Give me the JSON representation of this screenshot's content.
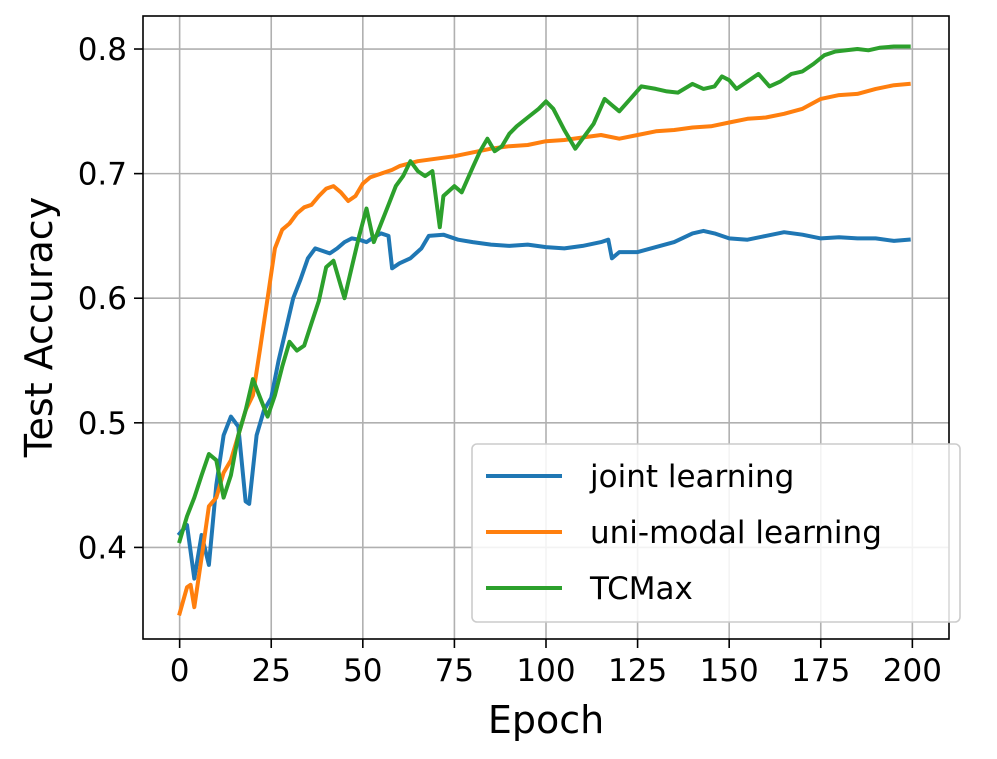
{
  "chart_data": {
    "type": "line",
    "title": "",
    "xlabel": "Epoch",
    "ylabel": "Test Accuracy",
    "xlim": [
      -10,
      210
    ],
    "ylim": [
      0.3265,
      0.8265
    ],
    "xticks": [
      0,
      25,
      50,
      75,
      100,
      125,
      150,
      175,
      200
    ],
    "xtick_labels": [
      "0",
      "25",
      "50",
      "75",
      "100",
      "125",
      "150",
      "175",
      "200"
    ],
    "yticks": [
      0.4,
      0.5,
      0.6,
      0.7,
      0.8
    ],
    "ytick_labels": [
      "0.4",
      "0.5",
      "0.6",
      "0.7",
      "0.8"
    ],
    "grid": true,
    "legend_position": "lower-right",
    "series": [
      {
        "name": "joint learning",
        "color": "#1f77b4",
        "points": [
          [
            0,
            0.411
          ],
          [
            2,
            0.418
          ],
          [
            4,
            0.375
          ],
          [
            6,
            0.41
          ],
          [
            8,
            0.386
          ],
          [
            10,
            0.45
          ],
          [
            12,
            0.49
          ],
          [
            14,
            0.505
          ],
          [
            16,
            0.497
          ],
          [
            18,
            0.437
          ],
          [
            19,
            0.435
          ],
          [
            21,
            0.49
          ],
          [
            23,
            0.51
          ],
          [
            25,
            0.52
          ],
          [
            27,
            0.55
          ],
          [
            29,
            0.575
          ],
          [
            31,
            0.6
          ],
          [
            33,
            0.615
          ],
          [
            35,
            0.632
          ],
          [
            37,
            0.64
          ],
          [
            39,
            0.638
          ],
          [
            41,
            0.636
          ],
          [
            43,
            0.64
          ],
          [
            45,
            0.645
          ],
          [
            47,
            0.648
          ],
          [
            49,
            0.647
          ],
          [
            51,
            0.645
          ],
          [
            53,
            0.649
          ],
          [
            55,
            0.652
          ],
          [
            57,
            0.65
          ],
          [
            58,
            0.624
          ],
          [
            60,
            0.628
          ],
          [
            63,
            0.632
          ],
          [
            66,
            0.64
          ],
          [
            68,
            0.65
          ],
          [
            72,
            0.651
          ],
          [
            76,
            0.647
          ],
          [
            80,
            0.645
          ],
          [
            85,
            0.643
          ],
          [
            90,
            0.642
          ],
          [
            95,
            0.643
          ],
          [
            100,
            0.641
          ],
          [
            105,
            0.64
          ],
          [
            110,
            0.642
          ],
          [
            115,
            0.645
          ],
          [
            117,
            0.647
          ],
          [
            118,
            0.632
          ],
          [
            120,
            0.637
          ],
          [
            125,
            0.637
          ],
          [
            130,
            0.641
          ],
          [
            135,
            0.645
          ],
          [
            140,
            0.652
          ],
          [
            143,
            0.654
          ],
          [
            146,
            0.652
          ],
          [
            150,
            0.648
          ],
          [
            155,
            0.647
          ],
          [
            160,
            0.65
          ],
          [
            165,
            0.653
          ],
          [
            170,
            0.651
          ],
          [
            175,
            0.648
          ],
          [
            180,
            0.649
          ],
          [
            185,
            0.648
          ],
          [
            190,
            0.648
          ],
          [
            195,
            0.646
          ],
          [
            199,
            0.647
          ]
        ]
      },
      {
        "name": "uni-modal learning",
        "color": "#ff7f0e",
        "points": [
          [
            0,
            0.347
          ],
          [
            2,
            0.368
          ],
          [
            3,
            0.37
          ],
          [
            4,
            0.352
          ],
          [
            6,
            0.392
          ],
          [
            8,
            0.433
          ],
          [
            10,
            0.44
          ],
          [
            12,
            0.46
          ],
          [
            14,
            0.47
          ],
          [
            16,
            0.49
          ],
          [
            18,
            0.51
          ],
          [
            20,
            0.522
          ],
          [
            22,
            0.56
          ],
          [
            24,
            0.6
          ],
          [
            26,
            0.64
          ],
          [
            28,
            0.655
          ],
          [
            30,
            0.66
          ],
          [
            32,
            0.668
          ],
          [
            34,
            0.673
          ],
          [
            36,
            0.675
          ],
          [
            38,
            0.682
          ],
          [
            40,
            0.688
          ],
          [
            42,
            0.69
          ],
          [
            44,
            0.685
          ],
          [
            46,
            0.678
          ],
          [
            48,
            0.682
          ],
          [
            50,
            0.692
          ],
          [
            52,
            0.697
          ],
          [
            55,
            0.7
          ],
          [
            58,
            0.703
          ],
          [
            60,
            0.706
          ],
          [
            65,
            0.71
          ],
          [
            70,
            0.712
          ],
          [
            75,
            0.714
          ],
          [
            80,
            0.717
          ],
          [
            85,
            0.72
          ],
          [
            90,
            0.722
          ],
          [
            95,
            0.723
          ],
          [
            100,
            0.726
          ],
          [
            105,
            0.727
          ],
          [
            110,
            0.729
          ],
          [
            115,
            0.731
          ],
          [
            120,
            0.728
          ],
          [
            125,
            0.731
          ],
          [
            130,
            0.734
          ],
          [
            135,
            0.735
          ],
          [
            140,
            0.737
          ],
          [
            145,
            0.738
          ],
          [
            150,
            0.741
          ],
          [
            155,
            0.744
          ],
          [
            160,
            0.745
          ],
          [
            165,
            0.748
          ],
          [
            170,
            0.752
          ],
          [
            175,
            0.76
          ],
          [
            180,
            0.763
          ],
          [
            185,
            0.764
          ],
          [
            190,
            0.768
          ],
          [
            195,
            0.771
          ],
          [
            199,
            0.772
          ]
        ]
      },
      {
        "name": "TCMax",
        "color": "#2ca02c",
        "points": [
          [
            0,
            0.405
          ],
          [
            2,
            0.425
          ],
          [
            4,
            0.44
          ],
          [
            6,
            0.458
          ],
          [
            8,
            0.475
          ],
          [
            10,
            0.47
          ],
          [
            12,
            0.44
          ],
          [
            14,
            0.458
          ],
          [
            16,
            0.49
          ],
          [
            18,
            0.51
          ],
          [
            20,
            0.535
          ],
          [
            22,
            0.52
          ],
          [
            24,
            0.505
          ],
          [
            26,
            0.522
          ],
          [
            28,
            0.545
          ],
          [
            30,
            0.565
          ],
          [
            32,
            0.558
          ],
          [
            34,
            0.562
          ],
          [
            36,
            0.58
          ],
          [
            38,
            0.598
          ],
          [
            40,
            0.625
          ],
          [
            42,
            0.63
          ],
          [
            44,
            0.61
          ],
          [
            45,
            0.6
          ],
          [
            47,
            0.625
          ],
          [
            49,
            0.65
          ],
          [
            51,
            0.672
          ],
          [
            53,
            0.645
          ],
          [
            55,
            0.66
          ],
          [
            57,
            0.675
          ],
          [
            59,
            0.69
          ],
          [
            61,
            0.698
          ],
          [
            63,
            0.71
          ],
          [
            65,
            0.702
          ],
          [
            67,
            0.698
          ],
          [
            69,
            0.702
          ],
          [
            71,
            0.657
          ],
          [
            72,
            0.682
          ],
          [
            75,
            0.69
          ],
          [
            77,
            0.685
          ],
          [
            80,
            0.705
          ],
          [
            82,
            0.718
          ],
          [
            84,
            0.728
          ],
          [
            86,
            0.718
          ],
          [
            88,
            0.722
          ],
          [
            90,
            0.732
          ],
          [
            92,
            0.738
          ],
          [
            95,
            0.745
          ],
          [
            98,
            0.752
          ],
          [
            100,
            0.758
          ],
          [
            102,
            0.752
          ],
          [
            105,
            0.735
          ],
          [
            108,
            0.72
          ],
          [
            110,
            0.728
          ],
          [
            113,
            0.74
          ],
          [
            116,
            0.76
          ],
          [
            118,
            0.755
          ],
          [
            120,
            0.75
          ],
          [
            123,
            0.76
          ],
          [
            126,
            0.77
          ],
          [
            130,
            0.768
          ],
          [
            133,
            0.766
          ],
          [
            136,
            0.765
          ],
          [
            140,
            0.772
          ],
          [
            143,
            0.768
          ],
          [
            146,
            0.77
          ],
          [
            148,
            0.778
          ],
          [
            150,
            0.775
          ],
          [
            152,
            0.768
          ],
          [
            155,
            0.774
          ],
          [
            158,
            0.78
          ],
          [
            161,
            0.77
          ],
          [
            164,
            0.774
          ],
          [
            167,
            0.78
          ],
          [
            170,
            0.782
          ],
          [
            173,
            0.788
          ],
          [
            176,
            0.795
          ],
          [
            179,
            0.798
          ],
          [
            182,
            0.799
          ],
          [
            185,
            0.8
          ],
          [
            188,
            0.799
          ],
          [
            191,
            0.801
          ],
          [
            195,
            0.802
          ],
          [
            199,
            0.802
          ]
        ]
      }
    ]
  }
}
